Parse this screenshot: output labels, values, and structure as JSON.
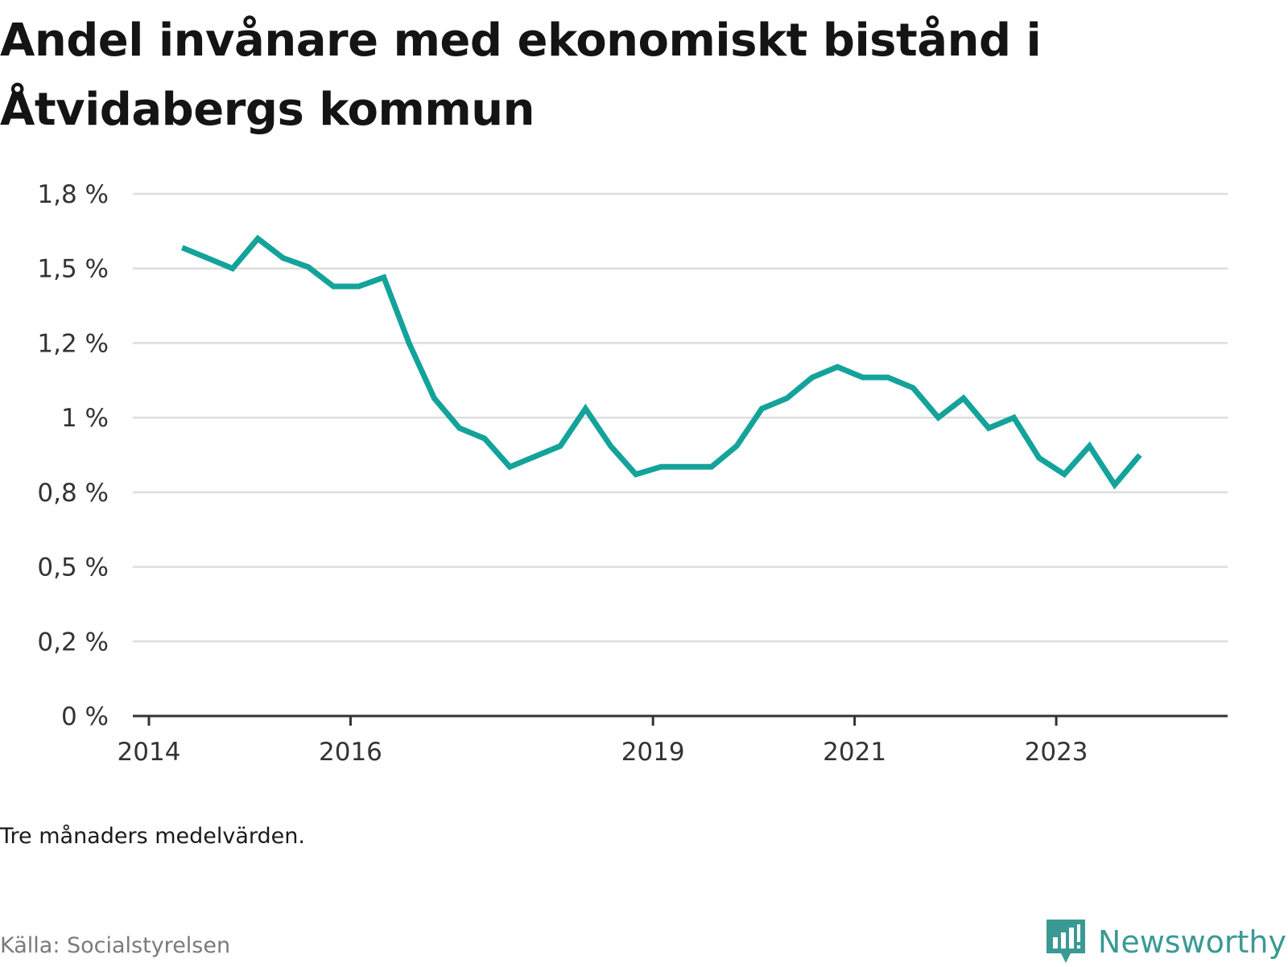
{
  "title": "Andel invånare med ekonomiskt bistånd i Åtvidabergs kommun",
  "note": "Tre månaders medelvärden.",
  "source": "Källa: Socialstyrelsen",
  "brand": "Newsworthy",
  "colors": {
    "line": "#14a39a",
    "grid": "#dddddd",
    "axis": "#333333",
    "brand": "#3a9a93"
  },
  "chart_data": {
    "type": "line",
    "title": "Andel invånare med ekonomiskt bistånd i Åtvidabergs kommun",
    "xlabel": "",
    "ylabel": "",
    "ylim": [
      0,
      1.75
    ],
    "xlim": [
      2014.0,
      2024.7
    ],
    "grid": true,
    "y_ticks": [
      0,
      0.25,
      0.5,
      0.75,
      1.0,
      1.25,
      1.5,
      1.75
    ],
    "y_tick_labels": [
      "0 %",
      "0,2 %",
      "0,5 %",
      "0,8 %",
      "1 %",
      "1,2 %",
      "1,5 %",
      "1,8 %"
    ],
    "x_ticks": [
      2014,
      2016,
      2019,
      2021,
      2023
    ],
    "x_tick_labels": [
      "2014",
      "2016",
      "2019",
      "2021",
      "2023"
    ],
    "series": [
      {
        "x": [
          2014.33,
          2014.58,
          2014.83,
          2015.08,
          2015.33,
          2015.58,
          2015.83,
          2016.08,
          2016.33,
          2016.58,
          2016.83,
          2017.08,
          2017.33,
          2017.58,
          2017.83,
          2018.08,
          2018.33,
          2018.58,
          2018.83,
          2019.08,
          2019.33,
          2019.58,
          2019.83,
          2020.08,
          2020.33,
          2020.58,
          2020.83,
          2021.08,
          2021.33,
          2021.58,
          2021.83,
          2022.08,
          2022.33,
          2022.58,
          2022.83,
          2023.08,
          2023.33,
          2023.58,
          2023.83
        ],
        "values": [
          1.57,
          1.535,
          1.5,
          1.6,
          1.535,
          1.505,
          1.44,
          1.44,
          1.47,
          1.25,
          1.065,
          0.965,
          0.93,
          0.835,
          0.87,
          0.905,
          1.03,
          0.905,
          0.81,
          0.835,
          0.835,
          0.835,
          0.905,
          1.03,
          1.065,
          1.135,
          1.17,
          1.135,
          1.135,
          1.1,
          1.0,
          1.065,
          0.965,
          1.0,
          0.865,
          0.81,
          0.905,
          0.775,
          0.875
        ]
      }
    ]
  }
}
